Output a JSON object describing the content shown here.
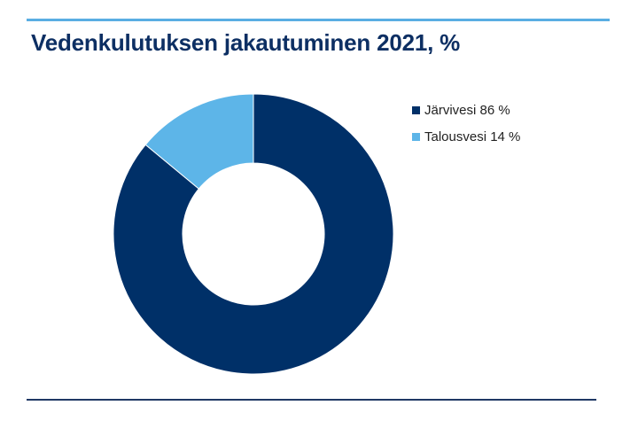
{
  "title": "Vedenkulutuksen jakautuminen 2021, %",
  "colors": {
    "rule_top": "#5aaee3",
    "rule_bottom": "#1f3864",
    "title": "#0d2f63"
  },
  "chart_data": {
    "type": "pie",
    "variant": "donut",
    "title": "Vedenkulutuksen jakautuminen 2021, %",
    "legend_position": "right",
    "series": [
      {
        "name": "Järvivesi 86 %",
        "value": 86,
        "color": "#003068"
      },
      {
        "name": "Talousvesi 14 %",
        "value": 14,
        "color": "#5db5e8"
      }
    ]
  }
}
